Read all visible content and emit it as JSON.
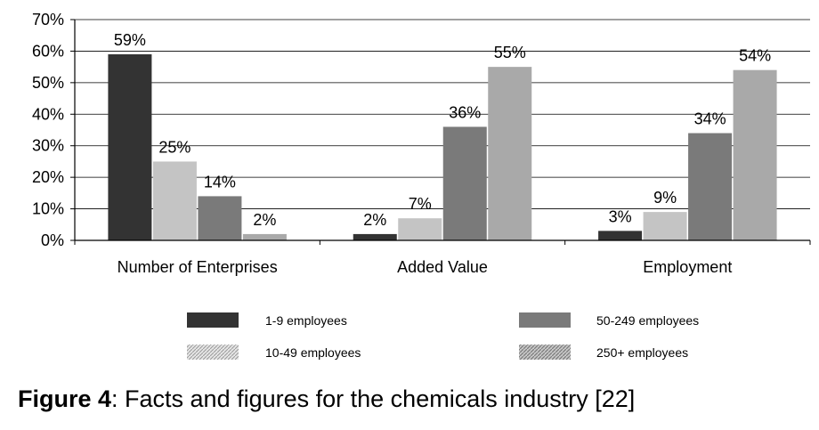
{
  "chart_data": {
    "type": "bar",
    "categories": [
      "Number of Enterprises",
      "Added Value",
      "Employment"
    ],
    "series": [
      {
        "name": "1-9 employees",
        "values": [
          59,
          2,
          3
        ],
        "color": "#333333",
        "pattern": "solid"
      },
      {
        "name": "10-49 employees",
        "values": [
          25,
          7,
          9
        ],
        "color": "#c4c4c4",
        "pattern": "hatched-light"
      },
      {
        "name": "50-249 employees",
        "values": [
          14,
          36,
          34
        ],
        "color": "#7a7a7a",
        "pattern": "solid"
      },
      {
        "name": "250+ employees",
        "values": [
          2,
          55,
          54
        ],
        "color": "#a9a9a9",
        "pattern": "hatched"
      }
    ],
    "data_labels": [
      [
        "59%",
        "2%",
        "3%"
      ],
      [
        "25%",
        "7%",
        "9%"
      ],
      [
        "14%",
        "36%",
        "34%"
      ],
      [
        "2%",
        "55%",
        "54%"
      ]
    ],
    "y_ticks": [
      "0%",
      "10%",
      "20%",
      "30%",
      "40%",
      "50%",
      "60%",
      "70%"
    ],
    "ylim": [
      0,
      70
    ],
    "grid": true,
    "legend_position": "bottom"
  },
  "caption": {
    "label": "Figure 4",
    "text": ": Facts and figures for the chemicals industry [22]"
  }
}
